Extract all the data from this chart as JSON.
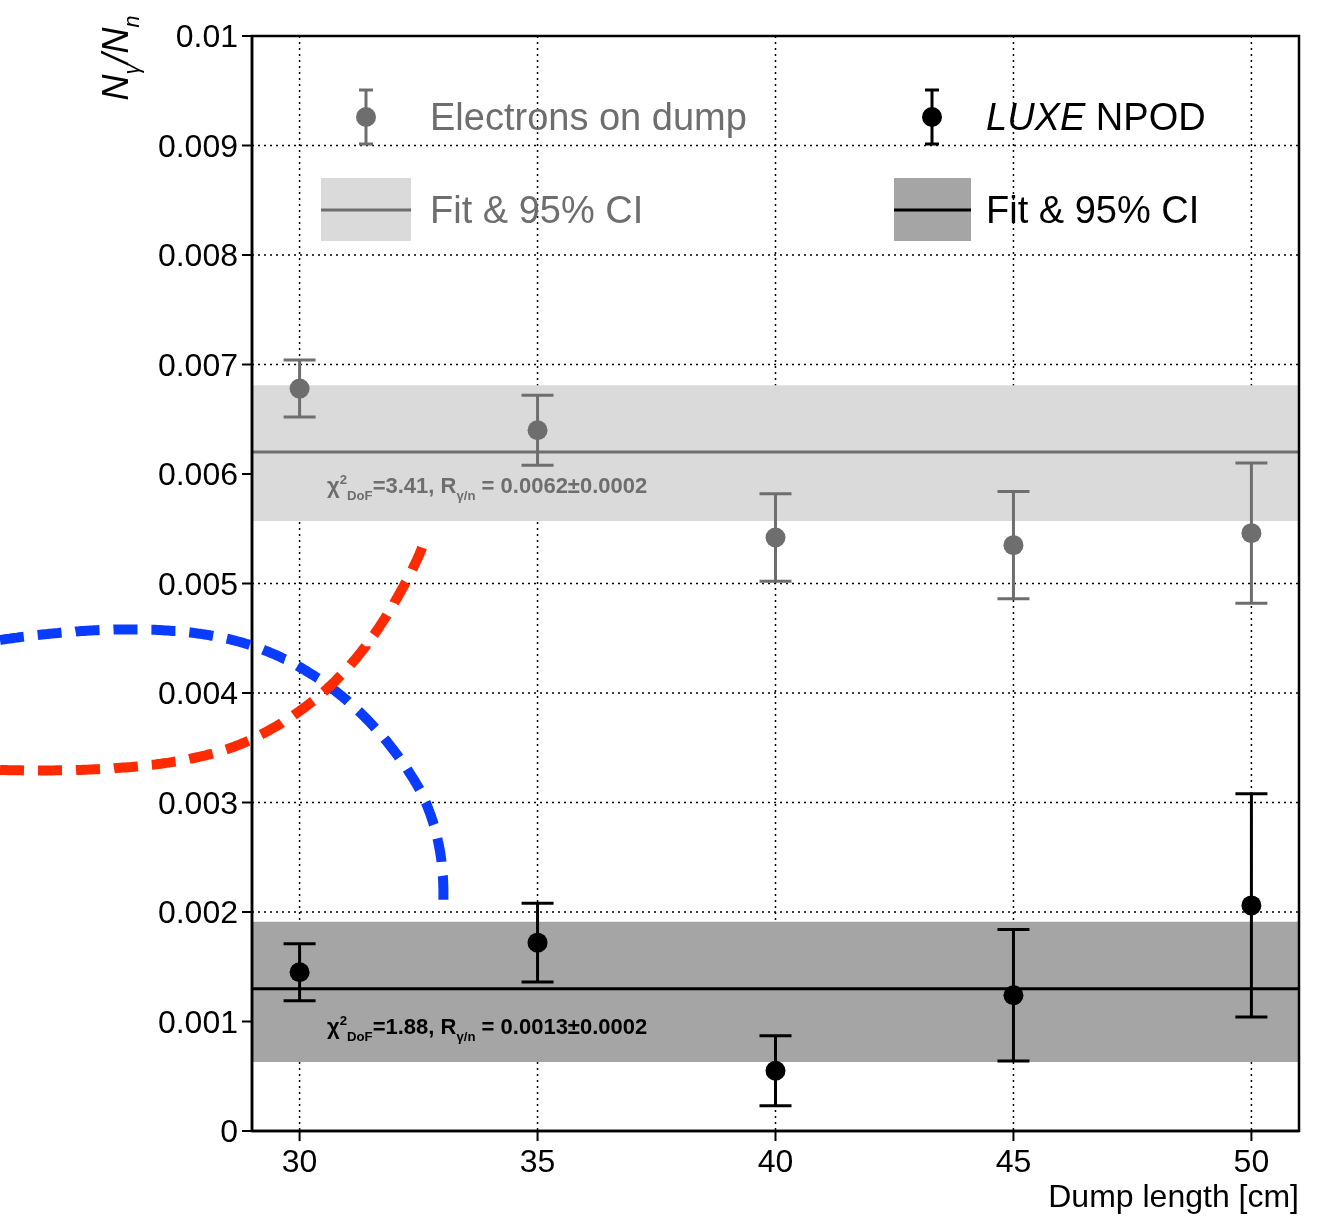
{
  "chart_data": {
    "type": "scatter",
    "xlabel": "Dump length [cm]",
    "ylabel": "N$_{γ}$/N$_{n}$",
    "xlim": [
      29,
      51
    ],
    "xticks": [
      30,
      35,
      40,
      45,
      50
    ],
    "ylim": [
      0,
      0.01
    ],
    "yticks": [
      0,
      0.001,
      0.002,
      0.003,
      0.004,
      0.005,
      0.006,
      0.007,
      0.008,
      0.009,
      0.01
    ],
    "grid": true,
    "legend": "top",
    "series": [
      {
        "name": "Electrons on dump",
        "marker": "circle",
        "color": "#6e6e6e",
        "x": [
          30,
          35,
          40,
          45,
          50
        ],
        "values": [
          0.00678,
          0.0064,
          0.00542,
          0.00535,
          0.00546
        ],
        "errors": [
          0.00026,
          0.00032,
          0.0004,
          0.00049,
          0.00064
        ]
      },
      {
        "name": "Fit & 95% CI",
        "type": "line",
        "color": "#6e6e6e",
        "x": [
          29,
          51
        ],
        "values": [
          0.0062,
          0.0062
        ]
      },
      {
        "name": "LUXE NPOD",
        "marker": "circle",
        "color": "#000000",
        "x": [
          30,
          35,
          40,
          45,
          50
        ],
        "values": [
          0.00145,
          0.00172,
          0.00055,
          0.00124,
          0.00206
        ],
        "errors": [
          0.00026,
          0.00036,
          0.00032,
          0.0006,
          0.00102
        ]
      },
      {
        "name": "Fit & 95% CI",
        "type": "line",
        "color": "#000000",
        "x": [
          29,
          51
        ],
        "values": [
          0.0013,
          0.0013
        ]
      }
    ],
    "bands": [
      {
        "axis": "y",
        "from": 0.00557,
        "to": 0.00681,
        "color": "#dadada"
      },
      {
        "axis": "y",
        "from": 0.00063,
        "to": 0.00191,
        "color": "#a5a5a5"
      }
    ],
    "annotations": [
      "χ$^{2}$$_{DoF}$=3.41,  R$_{γ/n}$ = 0.0062±0.0002",
      "χ$^{2}$$_{DoF}$=1.88,  R$_{γ/n}$ = 0.0013±0.0002"
    ]
  }
}
